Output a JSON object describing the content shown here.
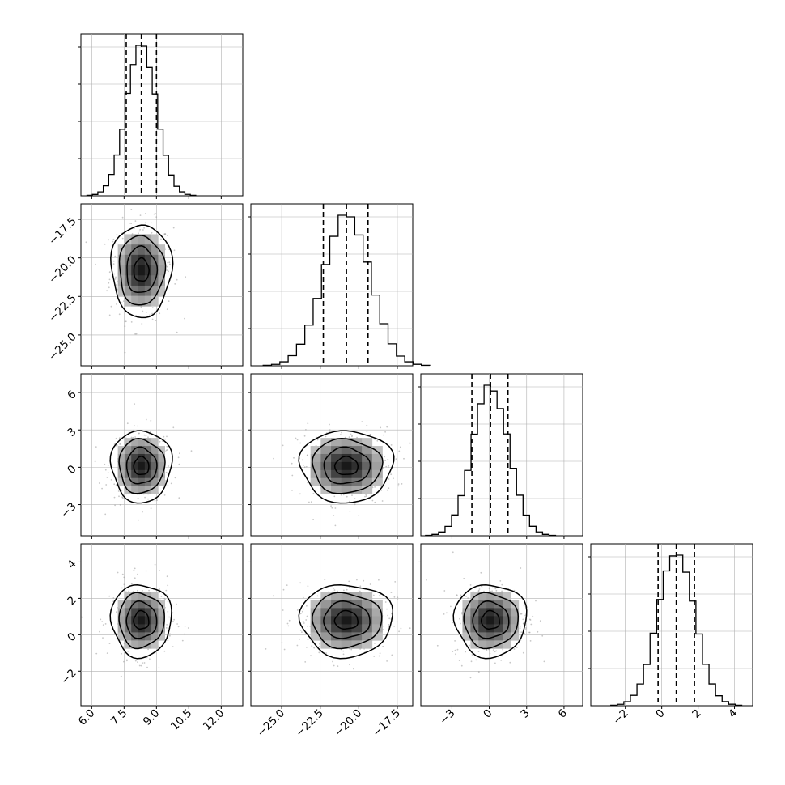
{
  "chart_data": {
    "type": "corner",
    "n_params": 4,
    "params": [
      {
        "range": [
          5.5,
          13.0
        ],
        "ticks": [
          "6.0",
          "7.5",
          "9.0",
          "10.5",
          "12.0"
        ],
        "tick_values": [
          6.0,
          7.5,
          9.0,
          10.5,
          12.0
        ],
        "quantiles": [
          7.6,
          8.3,
          9.0
        ],
        "mean": 8.3,
        "sd": 0.7
      },
      {
        "range": [
          -27.0,
          -16.5
        ],
        "ticks": [
          "-25.0",
          "-22.5",
          "-20.0",
          "-17.5"
        ],
        "tick_values": [
          -25.0,
          -22.5,
          -20.0,
          -17.5
        ],
        "quantiles": [
          -22.3,
          -20.8,
          -19.4
        ],
        "mean": -20.8,
        "sd": 1.5
      },
      {
        "range": [
          -5.5,
          7.5
        ],
        "ticks": [
          "-3",
          "0",
          "3",
          "6"
        ],
        "tick_values": [
          -3,
          0,
          3,
          6
        ],
        "quantiles": [
          -1.4,
          0.1,
          1.5
        ],
        "mean": 0.1,
        "sd": 1.45
      },
      {
        "range": [
          -3.9,
          5.0
        ],
        "ticks": [
          "-2",
          "0",
          "2",
          "4"
        ],
        "tick_values": [
          -2,
          0,
          2,
          4
        ],
        "quantiles": [
          -0.2,
          0.8,
          1.8
        ],
        "mean": 0.8,
        "sd": 1.0
      }
    ],
    "contour_levels_sigma": [
      0.5,
      1.0,
      1.5,
      2.0
    ],
    "histogram_bins": 20,
    "n_scatter_points": 350,
    "grid": true,
    "colors": {
      "line": "#000000",
      "grid": "#b0b0b0",
      "scatter": "#999999"
    }
  }
}
